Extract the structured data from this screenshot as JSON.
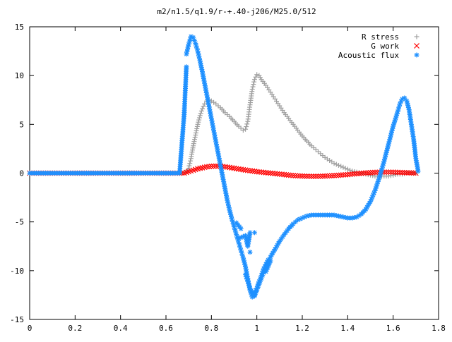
{
  "chart_data": {
    "type": "scatter",
    "title": "m2/n1.5/q1.9/r-+.40-j206/M25.0/512",
    "xlabel": "",
    "ylabel": "",
    "xlim": [
      0,
      1.8
    ],
    "ylim": [
      -15,
      15
    ],
    "x_ticks": [
      "0",
      "0.2",
      "0.4",
      "0.6",
      "0.8",
      "1",
      "1.2",
      "1.4",
      "1.6",
      "1.8"
    ],
    "y_ticks": [
      "15",
      "10",
      "5",
      "0",
      "-5",
      "-10",
      "-15"
    ],
    "grid": false,
    "legend_position": "top-right",
    "series": [
      {
        "name": "R stress",
        "marker": "plus",
        "color": "#a0a0a0",
        "points": [
          [
            0.0,
            0
          ],
          [
            0.1,
            0
          ],
          [
            0.2,
            0
          ],
          [
            0.3,
            0
          ],
          [
            0.4,
            0
          ],
          [
            0.5,
            0
          ],
          [
            0.6,
            0
          ],
          [
            0.66,
            0
          ],
          [
            0.69,
            0.1
          ],
          [
            0.7,
            0.5
          ],
          [
            0.71,
            1.5
          ],
          [
            0.72,
            2.8
          ],
          [
            0.73,
            3.9
          ],
          [
            0.74,
            5.0
          ],
          [
            0.75,
            5.9
          ],
          [
            0.76,
            6.6
          ],
          [
            0.77,
            7.1
          ],
          [
            0.78,
            7.4
          ],
          [
            0.79,
            7.5
          ],
          [
            0.8,
            7.4
          ],
          [
            0.82,
            7.1
          ],
          [
            0.84,
            6.7
          ],
          [
            0.86,
            6.2
          ],
          [
            0.88,
            5.8
          ],
          [
            0.9,
            5.3
          ],
          [
            0.92,
            4.8
          ],
          [
            0.94,
            4.4
          ],
          [
            0.95,
            4.5
          ],
          [
            0.96,
            5.3
          ],
          [
            0.97,
            7.0
          ],
          [
            0.98,
            8.6
          ],
          [
            0.99,
            9.6
          ],
          [
            1.0,
            10.1
          ],
          [
            1.01,
            10.0
          ],
          [
            1.02,
            9.6
          ],
          [
            1.04,
            9.0
          ],
          [
            1.06,
            8.3
          ],
          [
            1.08,
            7.6
          ],
          [
            1.1,
            6.9
          ],
          [
            1.12,
            6.2
          ],
          [
            1.14,
            5.6
          ],
          [
            1.16,
            5.0
          ],
          [
            1.18,
            4.4
          ],
          [
            1.2,
            3.8
          ],
          [
            1.22,
            3.3
          ],
          [
            1.24,
            2.8
          ],
          [
            1.26,
            2.4
          ],
          [
            1.28,
            2.0
          ],
          [
            1.3,
            1.6
          ],
          [
            1.32,
            1.3
          ],
          [
            1.34,
            1.0
          ],
          [
            1.36,
            0.8
          ],
          [
            1.38,
            0.6
          ],
          [
            1.4,
            0.4
          ],
          [
            1.42,
            0.2
          ],
          [
            1.44,
            0.1
          ],
          [
            1.46,
            0.0
          ],
          [
            1.48,
            -0.1
          ],
          [
            1.5,
            -0.2
          ],
          [
            1.52,
            -0.3
          ],
          [
            1.54,
            -0.3
          ],
          [
            1.56,
            -0.3
          ],
          [
            1.58,
            -0.3
          ],
          [
            1.6,
            -0.2
          ],
          [
            1.62,
            -0.1
          ],
          [
            1.64,
            -0.1
          ],
          [
            1.66,
            0.0
          ],
          [
            1.68,
            0.0
          ],
          [
            1.7,
            0.0
          ]
        ]
      },
      {
        "name": "G work",
        "marker": "cross",
        "color": "#ff0000",
        "points": [
          [
            0.0,
            0
          ],
          [
            0.1,
            0
          ],
          [
            0.2,
            0
          ],
          [
            0.3,
            0
          ],
          [
            0.4,
            0
          ],
          [
            0.5,
            0
          ],
          [
            0.6,
            0
          ],
          [
            0.68,
            0
          ],
          [
            0.7,
            0.15
          ],
          [
            0.72,
            0.3
          ],
          [
            0.74,
            0.45
          ],
          [
            0.76,
            0.55
          ],
          [
            0.78,
            0.65
          ],
          [
            0.8,
            0.7
          ],
          [
            0.82,
            0.72
          ],
          [
            0.84,
            0.7
          ],
          [
            0.86,
            0.65
          ],
          [
            0.88,
            0.58
          ],
          [
            0.9,
            0.5
          ],
          [
            0.92,
            0.42
          ],
          [
            0.94,
            0.35
          ],
          [
            0.96,
            0.28
          ],
          [
            0.98,
            0.22
          ],
          [
            1.0,
            0.15
          ],
          [
            1.02,
            0.1
          ],
          [
            1.04,
            0.05
          ],
          [
            1.06,
            0.0
          ],
          [
            1.08,
            -0.05
          ],
          [
            1.1,
            -0.1
          ],
          [
            1.12,
            -0.15
          ],
          [
            1.14,
            -0.2
          ],
          [
            1.16,
            -0.25
          ],
          [
            1.18,
            -0.28
          ],
          [
            1.2,
            -0.3
          ],
          [
            1.22,
            -0.32
          ],
          [
            1.24,
            -0.33
          ],
          [
            1.26,
            -0.33
          ],
          [
            1.28,
            -0.32
          ],
          [
            1.3,
            -0.3
          ],
          [
            1.32,
            -0.28
          ],
          [
            1.34,
            -0.25
          ],
          [
            1.36,
            -0.22
          ],
          [
            1.38,
            -0.18
          ],
          [
            1.4,
            -0.15
          ],
          [
            1.42,
            -0.1
          ],
          [
            1.44,
            -0.06
          ],
          [
            1.46,
            -0.02
          ],
          [
            1.48,
            0.02
          ],
          [
            1.5,
            0.05
          ],
          [
            1.52,
            0.08
          ],
          [
            1.54,
            0.1
          ],
          [
            1.56,
            0.1
          ],
          [
            1.58,
            0.1
          ],
          [
            1.6,
            0.1
          ],
          [
            1.62,
            0.08
          ],
          [
            1.64,
            0.06
          ],
          [
            1.66,
            0.04
          ],
          [
            1.68,
            0.02
          ],
          [
            1.7,
            0.0
          ]
        ]
      },
      {
        "name": "Acoustic flux",
        "marker": "star",
        "color": "#1e90ff",
        "points": [
          [
            0.0,
            0
          ],
          [
            0.1,
            0
          ],
          [
            0.2,
            0
          ],
          [
            0.3,
            0
          ],
          [
            0.4,
            0
          ],
          [
            0.5,
            0
          ],
          [
            0.6,
            0
          ],
          [
            0.66,
            0
          ],
          [
            0.68,
            6.0
          ],
          [
            0.69,
            10.9
          ],
          [
            0.69,
            12.2
          ],
          [
            0.7,
            13.2
          ],
          [
            0.71,
            14.0
          ],
          [
            0.72,
            13.9
          ],
          [
            0.73,
            13.3
          ],
          [
            0.74,
            12.5
          ],
          [
            0.75,
            11.5
          ],
          [
            0.76,
            10.4
          ],
          [
            0.77,
            9.2
          ],
          [
            0.78,
            8.0
          ],
          [
            0.79,
            6.8
          ],
          [
            0.8,
            5.6
          ],
          [
            0.81,
            4.4
          ],
          [
            0.82,
            3.2
          ],
          [
            0.83,
            2.0
          ],
          [
            0.84,
            0.8
          ],
          [
            0.85,
            -0.4
          ],
          [
            0.86,
            -1.6
          ],
          [
            0.87,
            -2.8
          ],
          [
            0.88,
            -3.8
          ],
          [
            0.89,
            -4.7
          ],
          [
            0.9,
            -5.5
          ],
          [
            0.91,
            -6.3
          ],
          [
            0.92,
            -7.1
          ],
          [
            0.93,
            -7.9
          ],
          [
            0.94,
            -8.7
          ],
          [
            0.95,
            -9.6
          ],
          [
            0.96,
            -10.8
          ],
          [
            0.97,
            -12.0
          ],
          [
            0.98,
            -12.7
          ],
          [
            0.99,
            -12.6
          ],
          [
            1.0,
            -12.0
          ],
          [
            1.01,
            -11.4
          ],
          [
            1.02,
            -10.8
          ],
          [
            1.03,
            -10.2
          ],
          [
            1.04,
            -9.6
          ],
          [
            1.05,
            -9.1
          ],
          [
            1.06,
            -8.6
          ],
          [
            1.08,
            -7.8
          ],
          [
            1.1,
            -7.0
          ],
          [
            1.12,
            -6.3
          ],
          [
            1.14,
            -5.7
          ],
          [
            1.16,
            -5.2
          ],
          [
            1.18,
            -4.8
          ],
          [
            1.2,
            -4.6
          ],
          [
            1.22,
            -4.4
          ],
          [
            1.24,
            -4.3
          ],
          [
            1.26,
            -4.3
          ],
          [
            1.28,
            -4.3
          ],
          [
            1.3,
            -4.3
          ],
          [
            1.32,
            -4.3
          ],
          [
            1.34,
            -4.3
          ],
          [
            1.36,
            -4.4
          ],
          [
            1.38,
            -4.5
          ],
          [
            1.4,
            -4.6
          ],
          [
            1.42,
            -4.6
          ],
          [
            1.44,
            -4.5
          ],
          [
            1.46,
            -4.2
          ],
          [
            1.48,
            -3.7
          ],
          [
            1.5,
            -2.9
          ],
          [
            1.52,
            -1.8
          ],
          [
            1.54,
            -0.4
          ],
          [
            1.56,
            1.2
          ],
          [
            1.58,
            3.0
          ],
          [
            1.6,
            4.8
          ],
          [
            1.62,
            6.3
          ],
          [
            1.63,
            7.1
          ],
          [
            1.64,
            7.6
          ],
          [
            1.65,
            7.7
          ],
          [
            1.66,
            7.4
          ],
          [
            1.67,
            6.5
          ],
          [
            1.68,
            5.0
          ],
          [
            1.69,
            3.5
          ],
          [
            1.7,
            1.5
          ],
          [
            1.71,
            0.2
          ],
          [
            0.91,
            -5.1
          ],
          [
            0.93,
            -5.7
          ],
          [
            0.92,
            -6.7
          ],
          [
            0.95,
            -6.4
          ],
          [
            0.96,
            -7.5
          ],
          [
            0.97,
            -6.1
          ],
          [
            0.97,
            -8.1
          ],
          [
            0.95,
            -10.4
          ],
          [
            0.97,
            -11.8
          ],
          [
            0.99,
            -12.5
          ],
          [
            1.01,
            -11.1
          ],
          [
            1.02,
            -10.5
          ],
          [
            1.03,
            -9.8
          ],
          [
            1.05,
            -8.9
          ],
          [
            1.04,
            -10.1
          ],
          [
            1.06,
            -9.0
          ],
          [
            0.99,
            -6.1
          ]
        ]
      }
    ]
  }
}
